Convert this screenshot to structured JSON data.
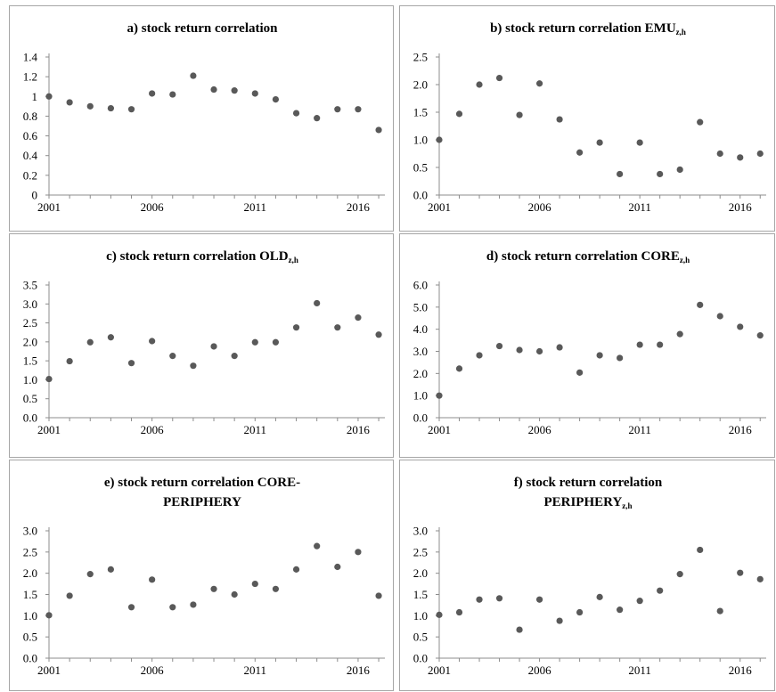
{
  "chart_data": [
    {
      "id": "a",
      "type": "scatter",
      "title_lines": [
        [
          {
            "text": "a) stock return correlation"
          }
        ]
      ],
      "x": [
        2001,
        2002,
        2003,
        2004,
        2005,
        2006,
        2007,
        2008,
        2009,
        2010,
        2011,
        2012,
        2013,
        2014,
        2015,
        2016,
        2017
      ],
      "values": [
        1.0,
        0.94,
        0.9,
        0.88,
        0.87,
        1.03,
        1.02,
        1.21,
        1.07,
        1.06,
        1.03,
        0.97,
        0.83,
        0.78,
        0.87,
        0.87,
        0.66
      ],
      "xticks": [
        2001,
        2006,
        2011,
        2016
      ],
      "xtick_labels": [
        "2001",
        "2006",
        "2011",
        "2016"
      ],
      "yticks": [
        0,
        0.2,
        0.4,
        0.6,
        0.8,
        1,
        1.2,
        1.4
      ],
      "ytick_labels": [
        "0",
        "0.2",
        "0.4",
        "0.6",
        "0.8",
        "1",
        "1.2",
        "1.4"
      ],
      "ylim": [
        0,
        1.4
      ],
      "xlim": [
        2001,
        2017.3
      ],
      "color": "#595959"
    },
    {
      "id": "b",
      "type": "scatter",
      "title_lines": [
        [
          {
            "text": "b) stock return correlation EMU"
          },
          {
            "text": "z,h",
            "sub": true
          }
        ]
      ],
      "x": [
        2001,
        2002,
        2003,
        2004,
        2005,
        2006,
        2007,
        2008,
        2009,
        2010,
        2011,
        2012,
        2013,
        2014,
        2015,
        2016,
        2017
      ],
      "values": [
        1.0,
        1.47,
        2.0,
        2.12,
        1.45,
        2.02,
        1.37,
        0.77,
        0.95,
        0.38,
        0.95,
        0.38,
        0.46,
        1.32,
        0.75,
        0.68,
        0.75
      ],
      "xticks": [
        2001,
        2006,
        2011,
        2016
      ],
      "xtick_labels": [
        "2001",
        "2006",
        "2011",
        "2016"
      ],
      "yticks": [
        0,
        0.5,
        1,
        1.5,
        2,
        2.5
      ],
      "ytick_labels": [
        "0.0",
        "0.5",
        "1.0",
        "1.5",
        "2.0",
        "2.5"
      ],
      "ylim": [
        0,
        2.5
      ],
      "xlim": [
        2001,
        2017.3
      ],
      "color": "#595959"
    },
    {
      "id": "c",
      "type": "scatter",
      "title_lines": [
        [
          {
            "text": "c) stock return correlation OLD"
          },
          {
            "text": "z,h",
            "sub": true
          }
        ]
      ],
      "x": [
        2001,
        2002,
        2003,
        2004,
        2005,
        2006,
        2007,
        2008,
        2009,
        2010,
        2011,
        2012,
        2013,
        2014,
        2015,
        2016,
        2017
      ],
      "values": [
        1.02,
        1.49,
        1.99,
        2.12,
        1.44,
        2.02,
        1.63,
        1.37,
        1.88,
        1.63,
        1.99,
        1.99,
        2.38,
        3.02,
        2.38,
        2.64,
        2.19
      ],
      "xticks": [
        2001,
        2006,
        2011,
        2016
      ],
      "xtick_labels": [
        "2001",
        "2006",
        "2011",
        "2016"
      ],
      "yticks": [
        0,
        0.5,
        1,
        1.5,
        2,
        2.5,
        3,
        3.5
      ],
      "ytick_labels": [
        "0.0",
        "0.5",
        "1.0",
        "1.5",
        "2.0",
        "2.5",
        "3.0",
        "3.5"
      ],
      "ylim": [
        0,
        3.5
      ],
      "xlim": [
        2001,
        2017.3
      ],
      "color": "#595959"
    },
    {
      "id": "d",
      "type": "scatter",
      "title_lines": [
        [
          {
            "text": "d) stock return correlation CORE"
          },
          {
            "text": "z,h",
            "sub": true
          }
        ]
      ],
      "x": [
        2001,
        2002,
        2003,
        2004,
        2005,
        2006,
        2007,
        2008,
        2009,
        2010,
        2011,
        2012,
        2013,
        2014,
        2015,
        2016,
        2017
      ],
      "values": [
        1.0,
        2.22,
        2.82,
        3.24,
        3.06,
        3.0,
        3.18,
        2.04,
        2.82,
        2.7,
        3.3,
        3.3,
        3.78,
        5.1,
        4.59,
        4.11,
        3.72
      ],
      "xticks": [
        2001,
        2006,
        2011,
        2016
      ],
      "xtick_labels": [
        "2001",
        "2006",
        "2011",
        "2016"
      ],
      "yticks": [
        0,
        1,
        2,
        3,
        4,
        5,
        6
      ],
      "ytick_labels": [
        "0.0",
        "1.0",
        "2.0",
        "3.0",
        "4.0",
        "5.0",
        "6.0"
      ],
      "ylim": [
        0,
        6
      ],
      "xlim": [
        2001,
        2017.3
      ],
      "color": "#595959"
    },
    {
      "id": "e",
      "type": "scatter",
      "title_lines": [
        [
          {
            "text": "e) stock return correlation CORE-"
          }
        ],
        [
          {
            "text": "PERIPHERY"
          }
        ]
      ],
      "x": [
        2001,
        2002,
        2003,
        2004,
        2005,
        2006,
        2007,
        2008,
        2009,
        2010,
        2011,
        2012,
        2013,
        2014,
        2015,
        2016,
        2017
      ],
      "values": [
        1.01,
        1.47,
        1.98,
        2.09,
        1.2,
        1.85,
        1.2,
        1.26,
        1.63,
        1.5,
        1.75,
        1.63,
        2.09,
        2.64,
        2.15,
        2.5,
        1.47
      ],
      "xticks": [
        2001,
        2006,
        2011,
        2016
      ],
      "xtick_labels": [
        "2001",
        "2006",
        "2011",
        "2016"
      ],
      "yticks": [
        0,
        0.5,
        1,
        1.5,
        2,
        2.5,
        3
      ],
      "ytick_labels": [
        "0.0",
        "0.5",
        "1.0",
        "1.5",
        "2.0",
        "2.5",
        "3.0"
      ],
      "ylim": [
        0,
        3
      ],
      "xlim": [
        2001,
        2017.3
      ],
      "color": "#595959"
    },
    {
      "id": "f",
      "type": "scatter",
      "title_lines": [
        [
          {
            "text": "f) stock return correlation"
          }
        ],
        [
          {
            "text": "PERIPHERY"
          },
          {
            "text": "z,h",
            "sub": true
          }
        ]
      ],
      "x": [
        2001,
        2002,
        2003,
        2004,
        2005,
        2006,
        2007,
        2008,
        2009,
        2010,
        2011,
        2012,
        2013,
        2014,
        2015,
        2016,
        2017
      ],
      "values": [
        1.02,
        1.08,
        1.38,
        1.41,
        0.67,
        1.38,
        0.88,
        1.08,
        1.44,
        1.14,
        1.35,
        1.59,
        1.98,
        2.55,
        1.11,
        2.01,
        1.86
      ],
      "xticks": [
        2001,
        2006,
        2011,
        2016
      ],
      "xtick_labels": [
        "2001",
        "2006",
        "2011",
        "2016"
      ],
      "yticks": [
        0,
        0.5,
        1,
        1.5,
        2,
        2.5,
        3
      ],
      "ytick_labels": [
        "0.0",
        "0.5",
        "1.0",
        "1.5",
        "2.0",
        "2.5",
        "3.0"
      ],
      "ylim": [
        0,
        3
      ],
      "xlim": [
        2001,
        2017.3
      ],
      "color": "#595959"
    }
  ]
}
